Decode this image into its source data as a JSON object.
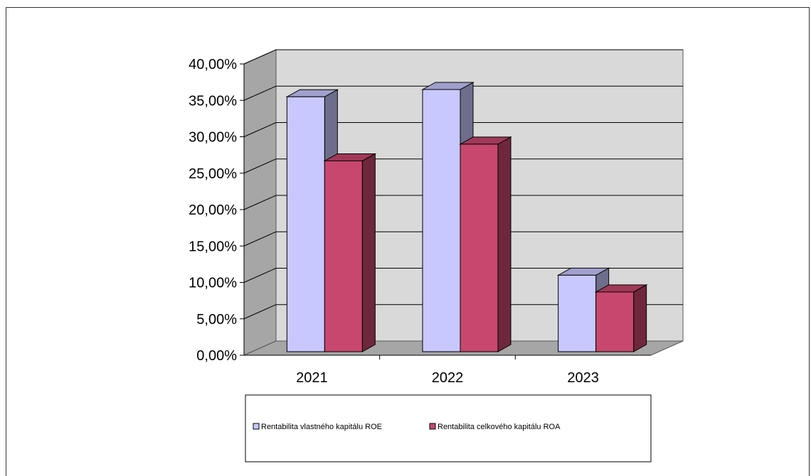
{
  "chart_data": {
    "type": "bar",
    "categories": [
      "2021",
      "2022",
      "2023"
    ],
    "series": [
      {
        "name": "Rentabilita vlastného kapitálu ROE",
        "values": [
          35.0,
          36.0,
          10.5
        ],
        "color": "#c8c8ff"
      },
      {
        "name": "Rentabilita celkového kapitálu ROA",
        "values": [
          26.2,
          28.5,
          8.2
        ],
        "color": "#c8476e"
      }
    ],
    "ylim": [
      0,
      40
    ],
    "y_ticks": [
      "0,00%",
      "5,00%",
      "10,00%",
      "15,00%",
      "20,00%",
      "25,00%",
      "30,00%",
      "35,00%",
      "40,00%"
    ],
    "y_tick_values": [
      0,
      5,
      10,
      15,
      20,
      25,
      30,
      35,
      40
    ],
    "grid": true,
    "style": "3d-bar",
    "legend_position": "bottom"
  }
}
